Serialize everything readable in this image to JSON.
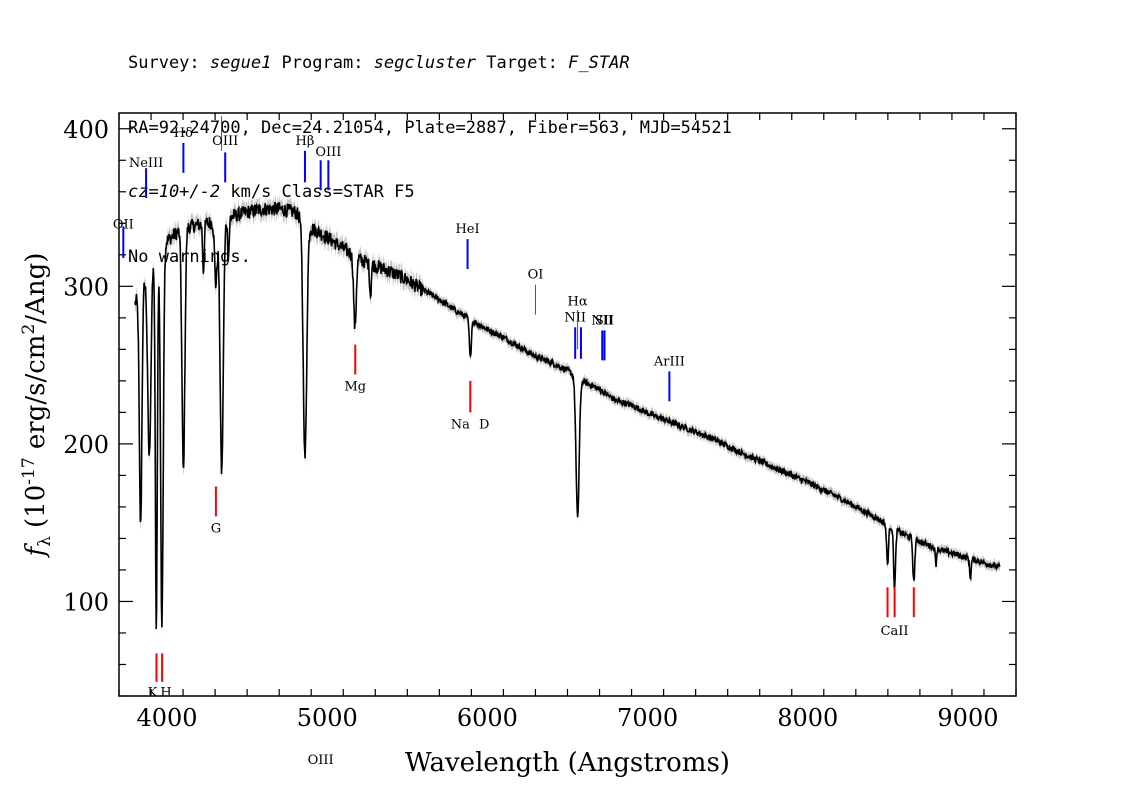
{
  "header": {
    "line1": {
      "survey_label": "Survey: ",
      "survey": "segue1",
      "program_label": " Program: ",
      "program": "segcluster",
      "target_label": " Target: ",
      "target": "F_STAR"
    },
    "line2": "RA=92.24700, Dec=24.21054, Plate=2887, Fiber=563, MJD=54521",
    "line3": {
      "cz": "cz=10+/-2",
      "rest": " km/s Class=STAR F5"
    },
    "line4": "No warnings."
  },
  "chart_data": {
    "type": "line",
    "title": "",
    "xlabel": "Wavelength (Angstroms)",
    "ylabel_prefix": "f",
    "ylabel_sub": "λ",
    "ylabel_main": "(10",
    "ylabel_exp": "-17",
    "ylabel_rest": " erg/s/cm",
    "ylabel_exp2": "2",
    "ylabel_end": "/Ang)",
    "xlim": [
      3700,
      9300
    ],
    "ylim": [
      40,
      410
    ],
    "xticks": [
      4000,
      5000,
      6000,
      7000,
      8000,
      9000
    ],
    "yticks": [
      100,
      200,
      300,
      400
    ],
    "continuum": [
      [
        3800,
        290
      ],
      [
        3900,
        315
      ],
      [
        4000,
        330
      ],
      [
        4100,
        338
      ],
      [
        4200,
        340
      ],
      [
        4300,
        342
      ],
      [
        4400,
        345
      ],
      [
        4500,
        348
      ],
      [
        4600,
        350
      ],
      [
        4700,
        350
      ],
      [
        4800,
        348
      ],
      [
        4900,
        338
      ],
      [
        5000,
        332
      ],
      [
        5100,
        325
      ],
      [
        5200,
        318
      ],
      [
        5300,
        314
      ],
      [
        5400,
        310
      ],
      [
        5500,
        305
      ],
      [
        5600,
        298
      ],
      [
        5700,
        292
      ],
      [
        5800,
        285
      ],
      [
        5900,
        279
      ],
      [
        6000,
        273
      ],
      [
        6100,
        268
      ],
      [
        6200,
        262
      ],
      [
        6300,
        256
      ],
      [
        6400,
        252
      ],
      [
        6500,
        247
      ],
      [
        6600,
        240
      ],
      [
        6700,
        235
      ],
      [
        6800,
        228
      ],
      [
        6900,
        225
      ],
      [
        7000,
        220
      ],
      [
        7200,
        212
      ],
      [
        7400,
        204
      ],
      [
        7600,
        194
      ],
      [
        7800,
        185
      ],
      [
        8000,
        176
      ],
      [
        8200,
        166
      ],
      [
        8400,
        155
      ],
      [
        8600,
        143
      ],
      [
        8800,
        134
      ],
      [
        9000,
        128
      ],
      [
        9200,
        122
      ]
    ],
    "absorption_lines": [
      {
        "wave": 3835,
        "depth": 150,
        "width": 8
      },
      {
        "wave": 3889,
        "depth": 120,
        "width": 10
      },
      {
        "wave": 3933,
        "depth": 240,
        "width": 6
      },
      {
        "wave": 3968,
        "depth": 240,
        "width": 8
      },
      {
        "wave": 4102,
        "depth": 155,
        "width": 9
      },
      {
        "wave": 4227,
        "depth": 30,
        "width": 5
      },
      {
        "wave": 4305,
        "depth": 40,
        "width": 8
      },
      {
        "wave": 4341,
        "depth": 160,
        "width": 10
      },
      {
        "wave": 4383,
        "depth": 25,
        "width": 5
      },
      {
        "wave": 4861,
        "depth": 150,
        "width": 11
      },
      {
        "wave": 5173,
        "depth": 45,
        "width": 8
      },
      {
        "wave": 5270,
        "depth": 20,
        "width": 5
      },
      {
        "wave": 5893,
        "depth": 25,
        "width": 6
      },
      {
        "wave": 6563,
        "depth": 88,
        "width": 10
      },
      {
        "wave": 8498,
        "depth": 25,
        "width": 6
      },
      {
        "wave": 8542,
        "depth": 38,
        "width": 6
      },
      {
        "wave": 8662,
        "depth": 28,
        "width": 6
      },
      {
        "wave": 8800,
        "depth": 10,
        "width": 4
      },
      {
        "wave": 9015,
        "depth": 12,
        "width": 5
      }
    ],
    "emission_markers": [
      {
        "label": "OII",
        "wave": 3727,
        "y1": 318,
        "y2": 338,
        "label_y": 340,
        "thin": false
      },
      {
        "label": "NeIII",
        "wave": 3869,
        "y1": 356,
        "y2": 375,
        "label_y": 379,
        "thin": false
      },
      {
        "label": "Hδ",
        "wave": 4102,
        "y1": 372,
        "y2": 391,
        "label_y": 398,
        "thin": false
      },
      {
        "label": "",
        "wave": 4340,
        "y1": 386,
        "y2": 408,
        "label_y": 0,
        "thin": true
      },
      {
        "label": "OIII",
        "wave": 4363,
        "y1": 366,
        "y2": 385,
        "label_y": 393,
        "thin": false
      },
      {
        "label": "Hβ",
        "wave": 4861,
        "y1": 366,
        "y2": 386,
        "label_y": 393,
        "thin": false
      },
      {
        "label": "OIII",
        "wave": 4959,
        "y1": 361,
        "y2": 380,
        "label_y": 0,
        "thin": false
      },
      {
        "label": "OIII",
        "wave": 5007,
        "y1": 361,
        "y2": 380,
        "label_y": 386,
        "thin": false
      },
      {
        "label": "HeI",
        "wave": 5876,
        "y1": 311,
        "y2": 330,
        "label_y": 337,
        "thin": false
      },
      {
        "label": "OI",
        "wave": 6300,
        "y1": 282,
        "y2": 301,
        "label_y": 308,
        "thin": true
      },
      {
        "label": "NII",
        "wave": 6548,
        "y1": 254,
        "y2": 274,
        "label_y": 281,
        "thin": false
      },
      {
        "label": "Hα",
        "wave": 6563,
        "y1": 260,
        "y2": 285,
        "label_y": 291,
        "thin": true
      },
      {
        "label": "",
        "wave": 6584,
        "y1": 254,
        "y2": 274,
        "label_y": 0,
        "thin": false
      },
      {
        "label": "NII",
        "wave": 6717,
        "y1": 253,
        "y2": 272,
        "label_y": 279,
        "thin": false
      },
      {
        "label": "SII",
        "wave": 6731,
        "y1": 253,
        "y2": 272,
        "label_y": 279,
        "thin": false
      },
      {
        "label": "ArIII",
        "wave": 7136,
        "y1": 227,
        "y2": 246,
        "label_y": 253,
        "thin": false
      }
    ],
    "absorption_markers": [
      {
        "label": "K",
        "wave": 3934,
        "y1": 49,
        "y2": 67,
        "label_y": 43
      },
      {
        "label": "H",
        "wave": 3969,
        "y1": 49,
        "y2": 67,
        "label_y": 43
      },
      {
        "label": "G",
        "wave": 4305,
        "y1": 154,
        "y2": 173,
        "label_y": 147
      },
      {
        "label": "Mg",
        "wave": 5175,
        "y1": 244,
        "y2": 263,
        "label_y": 237
      },
      {
        "label": "Na",
        "wave": 5893,
        "y1": 220,
        "y2": 240,
        "label_y": 213
      },
      {
        "label": "D",
        "wave": 5893,
        "y1": 0,
        "y2": 0,
        "label_y": 213
      },
      {
        "label": "",
        "wave": 8498,
        "y1": 90,
        "y2": 109,
        "label_y": 0
      },
      {
        "label": "CaII",
        "wave": 8542,
        "y1": 90,
        "y2": 109,
        "label_y": 82
      },
      {
        "label": "",
        "wave": 8662,
        "y1": 90,
        "y2": 109,
        "label_y": 0
      }
    ],
    "colors": {
      "spectrum": "#000000",
      "error_band": "#aaaaaa",
      "emission": "#0000ff",
      "absorption": "#ff0000",
      "axis": "#000000",
      "thin_marker": "#555555"
    }
  }
}
